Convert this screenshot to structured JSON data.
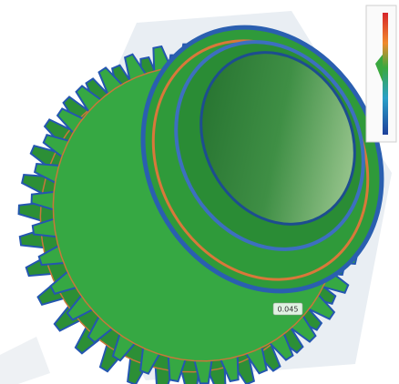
{
  "annotation": "0.045"
}
